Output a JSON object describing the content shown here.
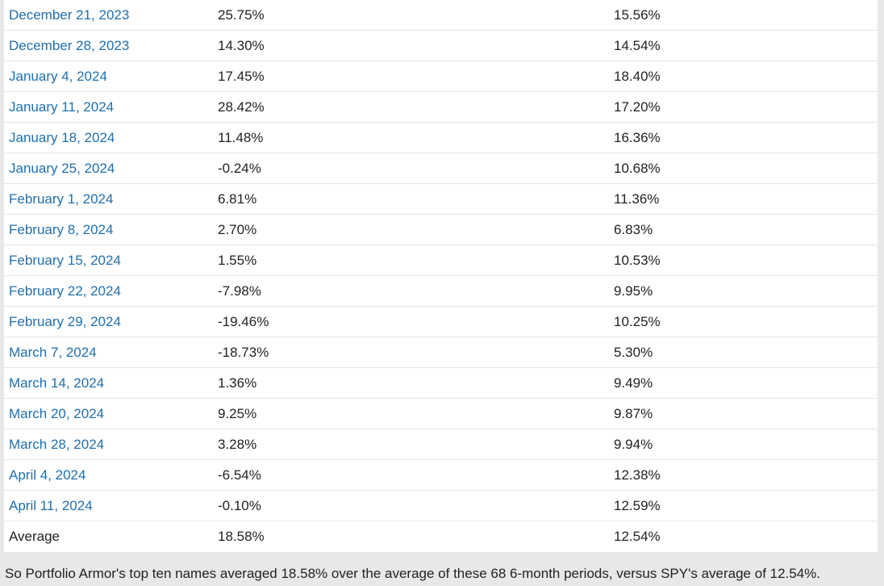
{
  "table": {
    "rows": [
      {
        "date": "December 21, 2023",
        "top_ten": "25.75%",
        "spy": "15.56%"
      },
      {
        "date": "December 28, 2023",
        "top_ten": "14.30%",
        "spy": "14.54%"
      },
      {
        "date": "January 4, 2024",
        "top_ten": "17.45%",
        "spy": "18.40%"
      },
      {
        "date": "January 11, 2024",
        "top_ten": "28.42%",
        "spy": "17.20%"
      },
      {
        "date": "January 18, 2024",
        "top_ten": "11.48%",
        "spy": "16.36%"
      },
      {
        "date": "January 25, 2024",
        "top_ten": "-0.24%",
        "spy": "10.68%"
      },
      {
        "date": "February 1, 2024",
        "top_ten": "6.81%",
        "spy": "11.36%"
      },
      {
        "date": "February 8, 2024",
        "top_ten": "2.70%",
        "spy": "6.83%"
      },
      {
        "date": "February 15, 2024",
        "top_ten": "1.55%",
        "spy": "10.53%"
      },
      {
        "date": "February 22, 2024",
        "top_ten": "-7.98%",
        "spy": "9.95%"
      },
      {
        "date": "February 29, 2024",
        "top_ten": "-19.46%",
        "spy": "10.25%"
      },
      {
        "date": "March 7, 2024",
        "top_ten": "-18.73%",
        "spy": "5.30%"
      },
      {
        "date": "March 14, 2024",
        "top_ten": "1.36%",
        "spy": "9.49%"
      },
      {
        "date": "March 20, 2024",
        "top_ten": "9.25%",
        "spy": "9.87%"
      },
      {
        "date": "March 28, 2024",
        "top_ten": "3.28%",
        "spy": "9.94%"
      },
      {
        "date": "April 4, 2024",
        "top_ten": "-6.54%",
        "spy": "12.38%"
      },
      {
        "date": "April 11, 2024",
        "top_ten": "-0.10%",
        "spy": "12.59%"
      }
    ],
    "average": {
      "label": "Average",
      "top_ten": "18.58%",
      "spy": "12.54%"
    }
  },
  "summary": "So Portfolio Armor's top ten names averaged 18.58% over the average of these 68 6-month periods, versus SPY's average of 12.54%.",
  "colors": {
    "link": "#1f6fae",
    "page_background": "#e8e8e8",
    "table_background": "#ffffff",
    "row_divider": "#e6e6e6"
  }
}
